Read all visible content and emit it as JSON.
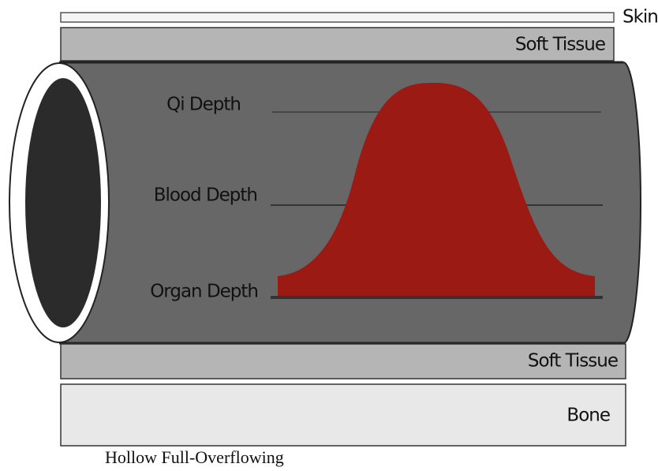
{
  "layers": {
    "skin": "Skin",
    "soft_tissue_top": "Soft Tissue",
    "soft_tissue_bottom": "Soft Tissue",
    "bone": "Bone"
  },
  "depths": {
    "qi": "Qi Depth",
    "blood": "Blood Depth",
    "organ": "Organ Depth"
  },
  "caption": "Hollow Full-Overflowing"
}
